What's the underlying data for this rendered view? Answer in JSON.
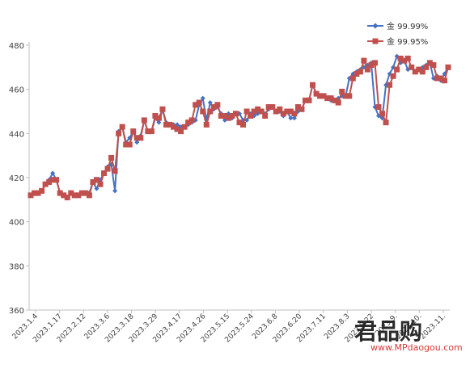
{
  "chart_data": {
    "type": "line",
    "title": "",
    "xlabel": "",
    "ylabel": "",
    "ylim": [
      360,
      480
    ],
    "yticks": [
      360,
      380,
      400,
      420,
      440,
      460,
      480
    ],
    "grid": false,
    "legend_position": "top-right",
    "x_tick_labels": [
      "2023.1.4",
      "2023.1.17",
      "2023.2.12",
      "2023.3.6",
      "2023.3.18",
      "2023.3.29",
      "2023.4.17",
      "2023.4.26",
      "2023.5.15",
      "2023.5.24",
      "2023.6.8",
      "2023.6.20",
      "2023.7.11",
      "2023.8.3",
      "2023.8.22",
      "2023.9.",
      "2023.10.",
      "2023.11."
    ],
    "series": [
      {
        "name": "金 99.99%",
        "color": "#4472c4",
        "marker": "diamond",
        "values": [
          412,
          413,
          413,
          414,
          417,
          419,
          422,
          419,
          413,
          412,
          411,
          413,
          412,
          412,
          413,
          413,
          413,
          418,
          415,
          419,
          422,
          425,
          426,
          414,
          441,
          443,
          436,
          438,
          441,
          436,
          439,
          446,
          441,
          441,
          447,
          445,
          451,
          445,
          444,
          444,
          444,
          443,
          443,
          444,
          445,
          446,
          453,
          456,
          446,
          454,
          451,
          452,
          449,
          446,
          449,
          447,
          449,
          449,
          446,
          446,
          449,
          448,
          449,
          450,
          449,
          451,
          452,
          450,
          450,
          448,
          450,
          447,
          447,
          450,
          451,
          455,
          455,
          462,
          458,
          457,
          457,
          456,
          455,
          455,
          456,
          457,
          457,
          465,
          467,
          468,
          469,
          470,
          471,
          472,
          452,
          448,
          447,
          462,
          467,
          470,
          475,
          472,
          473,
          469,
          470,
          468,
          469,
          470,
          471,
          472,
          465,
          466,
          464,
          467,
          470
        ],
        "line_style": "solid"
      },
      {
        "name": "金 99.95%",
        "color": "#c0504d",
        "marker": "square",
        "values": [
          412,
          413,
          413,
          414,
          417,
          418,
          419,
          419,
          413,
          412,
          411,
          413,
          412,
          412,
          413,
          413,
          412,
          418,
          419,
          417,
          422,
          424,
          429,
          423,
          440,
          443,
          435,
          435,
          441,
          438,
          438,
          446,
          441,
          441,
          448,
          447,
          451,
          444,
          444,
          443,
          442,
          441,
          443,
          445,
          446,
          453,
          454,
          450,
          444,
          450,
          452,
          453,
          448,
          448,
          447,
          448,
          449,
          445,
          444,
          450,
          448,
          450,
          451,
          450,
          448,
          452,
          452,
          450,
          451,
          449,
          450,
          450,
          449,
          452,
          451,
          455,
          455,
          462,
          458,
          457,
          457,
          456,
          456,
          455,
          454,
          459,
          457,
          457,
          465,
          467,
          468,
          473,
          469,
          471,
          472,
          452,
          449,
          445,
          462,
          466,
          469,
          474,
          473,
          474,
          470,
          468,
          469,
          468,
          470,
          472,
          471,
          465,
          465,
          464,
          470
        ],
        "line_style": "solid"
      }
    ]
  },
  "watermark": {
    "logo_text": "君品购",
    "url": "www.MPdaogou.com"
  }
}
